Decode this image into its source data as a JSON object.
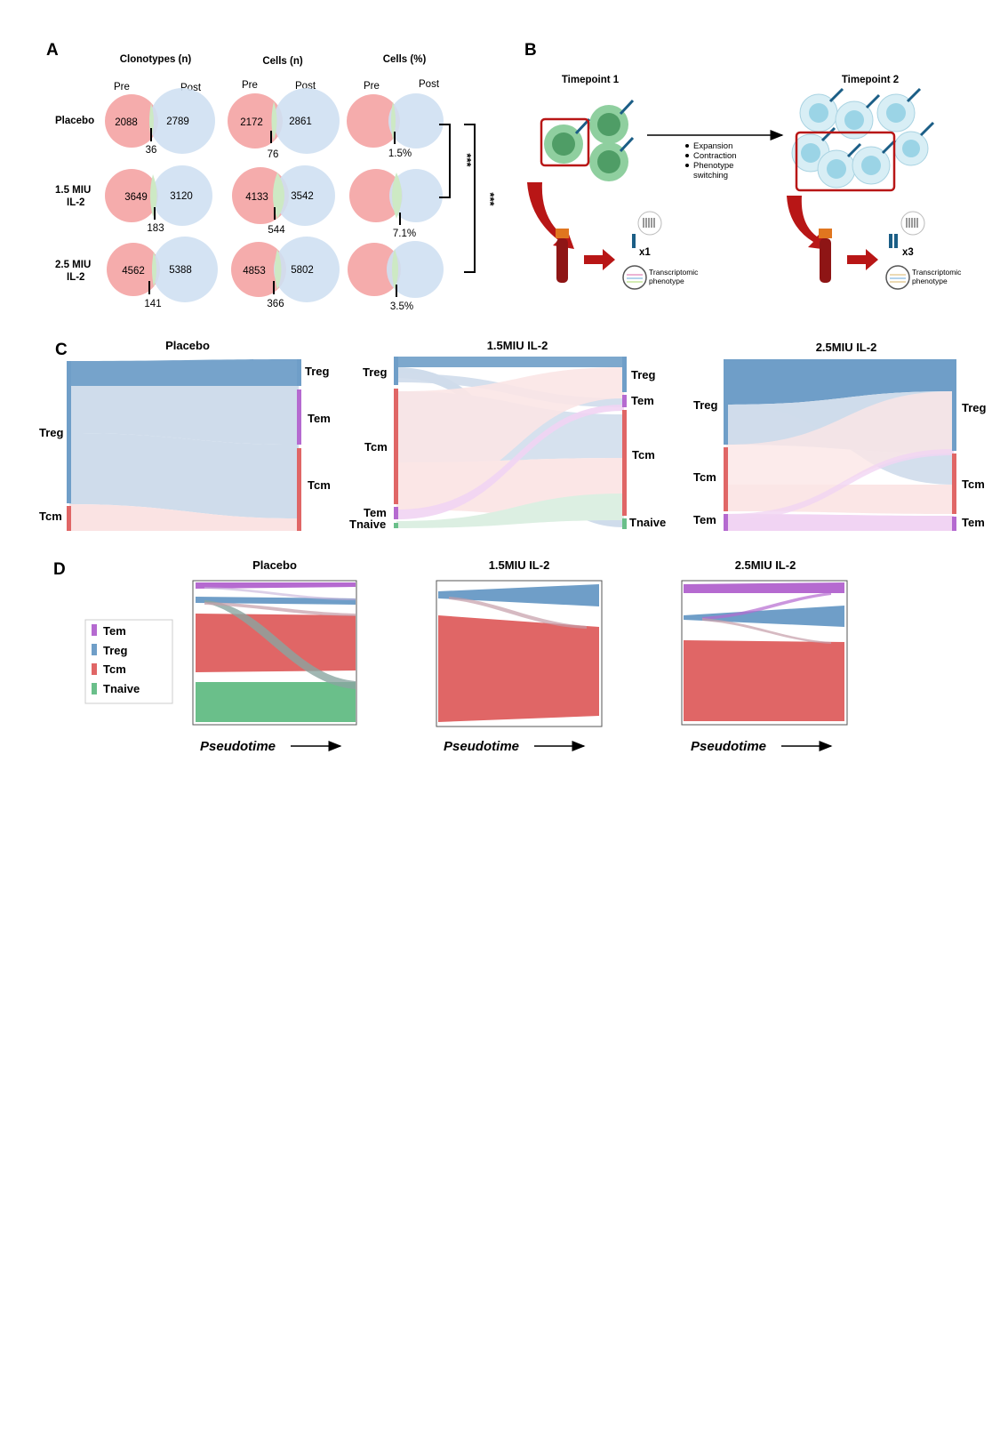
{
  "colors": {
    "pre_fill": "#f4a3a3",
    "post_fill": "#cfe0f2",
    "overlap": "#cde9c4",
    "treg": "#6f9ec8",
    "tem": "#b56ad0",
    "tcm": "#e06666",
    "tnaive": "#6abf8a",
    "cell_green": "#5aa772",
    "cell_blue": "#bde2ee",
    "red_arrow": "#b81616"
  },
  "panelA": {
    "letter": "A",
    "headers": [
      "Clonotypes (n)",
      "Cells (n)",
      "Cells (%)"
    ],
    "pre": "Pre",
    "post": "Post",
    "rows": [
      {
        "label1": "Placebo",
        "label2": "",
        "clon_pre": "2088",
        "clon_post": "2789",
        "clon_overlap": "36",
        "cells_pre": "2172",
        "cells_post": "2861",
        "cells_overlap": "76",
        "pct": "1.5%",
        "pct_value": 1.5
      },
      {
        "label1": "1.5 MIU",
        "label2": "IL-2",
        "clon_pre": "3649",
        "clon_post": "3120",
        "clon_overlap": "183",
        "cells_pre": "4133",
        "cells_post": "3542",
        "cells_overlap": "544",
        "pct": "7.1%",
        "pct_value": 7.1
      },
      {
        "label1": "2.5 MIU",
        "label2": "IL-2",
        "clon_pre": "4562",
        "clon_post": "5388",
        "clon_overlap": "141",
        "cells_pre": "4853",
        "cells_post": "5802",
        "cells_overlap": "366",
        "pct": "3.5%",
        "pct_value": 3.5
      }
    ],
    "sig1": "***",
    "sig2": "***"
  },
  "panelB": {
    "letter": "B",
    "tp1": "Timepoint 1",
    "tp2": "Timepoint 2",
    "events": [
      "Expansion",
      "Contraction",
      "Phenotype",
      "switching"
    ],
    "x1": "x1",
    "x3": "x3",
    "transcr1": "Transcriptomic",
    "transcr2": "phenotype"
  },
  "panelC": {
    "letter": "C",
    "plots": [
      {
        "title": "Placebo",
        "left": [
          "Treg",
          "Tcm"
        ],
        "right": [
          "Treg",
          "Tem",
          "Tcm"
        ]
      },
      {
        "title": "1.5MIU IL-2",
        "left": [
          "Treg",
          "Tcm",
          "Tem",
          "Tnaive"
        ],
        "right": [
          "Treg",
          "Tem",
          "Tcm",
          "Tnaive"
        ]
      },
      {
        "title": "2.5MIU IL-2",
        "left": [
          "Treg",
          "Tcm",
          "Tem"
        ],
        "right": [
          "Treg",
          "Tcm",
          "Tem"
        ]
      }
    ]
  },
  "panelD": {
    "letter": "D",
    "titles": [
      "Placebo",
      "1.5MIU IL-2",
      "2.5MIU IL-2"
    ],
    "legend": [
      "Tem",
      "Treg",
      "Tcm",
      "Tnaive"
    ],
    "pseudotime": "Pseudotime"
  }
}
